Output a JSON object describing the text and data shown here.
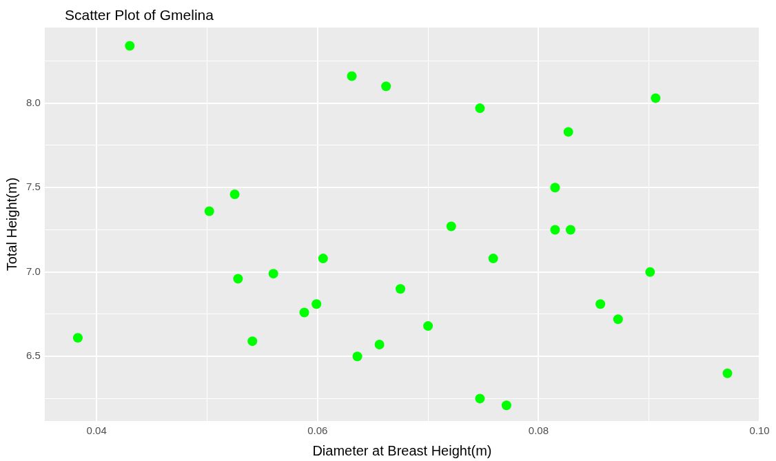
{
  "chart_data": {
    "type": "scatter",
    "title": "Scatter Plot of Gmelina",
    "xlabel": "Diameter at Breast Height(m)",
    "ylabel": "Total Height(m)",
    "x": [
      0.043,
      0.0383,
      0.0502,
      0.0525,
      0.0528,
      0.0541,
      0.056,
      0.0588,
      0.0599,
      0.0605,
      0.0631,
      0.0636,
      0.0656,
      0.0662,
      0.0675,
      0.07,
      0.0721,
      0.0747,
      0.0747,
      0.0759,
      0.0771,
      0.0815,
      0.0815,
      0.0827,
      0.0829,
      0.0856,
      0.0872,
      0.0901,
      0.0906,
      0.0971
    ],
    "values": [
      8.34,
      6.61,
      7.36,
      7.46,
      6.96,
      6.59,
      6.99,
      6.76,
      6.81,
      7.08,
      8.16,
      6.5,
      6.57,
      8.1,
      6.9,
      6.68,
      7.27,
      7.97,
      6.25,
      7.08,
      6.21,
      7.5,
      7.25,
      7.83,
      7.25,
      6.81,
      6.72,
      7.0,
      8.03,
      6.4
    ],
    "color": "#00ff00",
    "marker": "circle",
    "xlim": [
      0.0353,
      0.1
    ],
    "ylim": [
      6.117,
      8.448
    ],
    "xticks": [
      {
        "value": 0.04,
        "label": "0.04"
      },
      {
        "value": 0.05,
        "label": null
      },
      {
        "value": 0.06,
        "label": "0.06"
      },
      {
        "value": 0.07,
        "label": null
      },
      {
        "value": 0.08,
        "label": "0.08"
      },
      {
        "value": 0.09,
        "label": null
      },
      {
        "value": 0.1,
        "label": "0.10"
      }
    ],
    "yticks": [
      {
        "value": 6.25,
        "label": null
      },
      {
        "value": 6.5,
        "label": "6.5"
      },
      {
        "value": 6.75,
        "label": null
      },
      {
        "value": 7.0,
        "label": "7.0"
      },
      {
        "value": 7.25,
        "label": null
      },
      {
        "value": 7.5,
        "label": "7.5"
      },
      {
        "value": 7.75,
        "label": null
      },
      {
        "value": 8.0,
        "label": "8.0"
      },
      {
        "value": 8.25,
        "label": null
      }
    ],
    "grid": true,
    "legend": false
  }
}
